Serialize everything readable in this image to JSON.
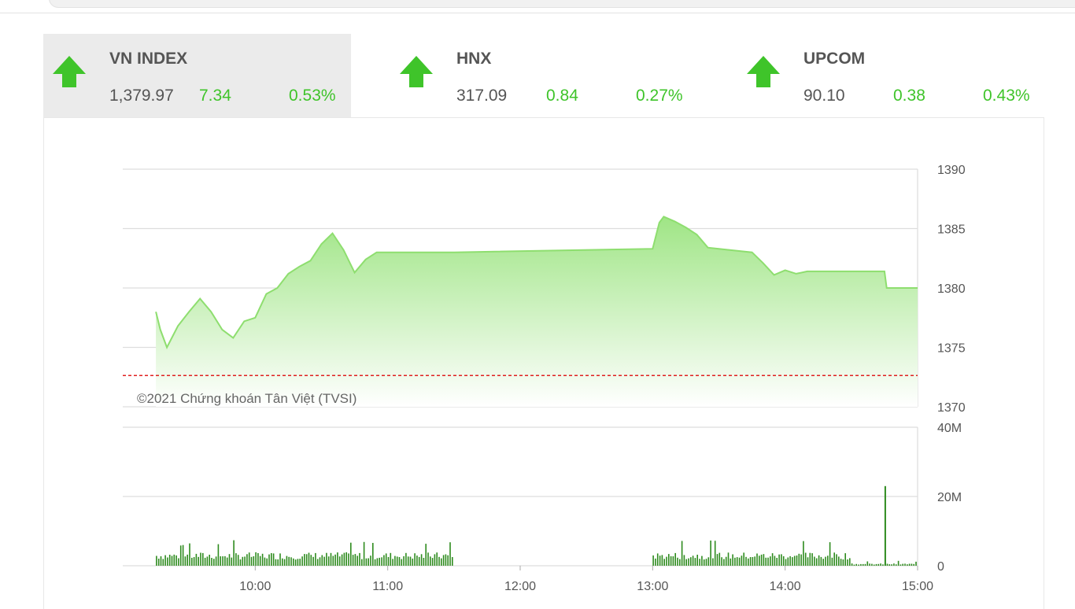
{
  "indices": [
    {
      "name": "VN INDEX",
      "value": "1,379.97",
      "change": "7.34",
      "percent": "0.53%",
      "direction": "up",
      "active": true
    },
    {
      "name": "HNX",
      "value": "317.09",
      "change": "0.84",
      "percent": "0.27%",
      "direction": "up",
      "active": false
    },
    {
      "name": "UPCOM",
      "value": "90.10",
      "change": "0.38",
      "percent": "0.43%",
      "direction": "up",
      "active": false
    }
  ],
  "colors": {
    "up": "#3fc42a",
    "line": "#8ede6f",
    "fill_top": "#9fe585",
    "fill_bottom": "#ffffff",
    "reference_line": "#e02020",
    "volume_bar": "#2e8b1e",
    "grid": "#dddddd",
    "text": "#555555"
  },
  "chart_data": [
    {
      "type": "area",
      "watermark": "©2021 Chứng khoán Tân Việt (TVSI)",
      "y_ticks": [
        "1390",
        "1385",
        "1380",
        "1375",
        "1370"
      ],
      "ylim": [
        1370,
        1390
      ],
      "reference_value": 1372.63,
      "reference_style": "dashed red line",
      "grid": true,
      "series": [
        {
          "x": [
            "09:15",
            "09:17",
            "09:20",
            "09:25",
            "09:30",
            "09:35",
            "09:40",
            "09:45",
            "09:50",
            "09:55",
            "10:00",
            "10:05",
            "10:10",
            "10:15",
            "10:20",
            "10:25",
            "10:30",
            "10:35",
            "10:40",
            "10:45",
            "10:50",
            "10:55",
            "11:00",
            "11:05",
            "11:10",
            "11:15",
            "11:20",
            "11:25",
            "11:30",
            "13:00",
            "13:03",
            "13:05",
            "13:10",
            "13:15",
            "13:20",
            "13:25",
            "13:30",
            "13:35",
            "13:40",
            "13:45",
            "13:50",
            "13:55",
            "14:00",
            "14:05",
            "14:10",
            "14:15",
            "14:20",
            "14:25",
            "14:30",
            "14:45",
            "14:46",
            "15:00"
          ],
          "y": [
            1378.0,
            1376.5,
            1375.0,
            1376.8,
            1378.0,
            1379.1,
            1378.0,
            1376.5,
            1375.8,
            1377.2,
            1377.5,
            1379.5,
            1380.0,
            1381.2,
            1381.8,
            1382.3,
            1383.7,
            1384.6,
            1383.2,
            1381.3,
            1382.4,
            1383.0,
            1383.0,
            1383.0,
            1383.0,
            1383.0,
            1383.0,
            1383.0,
            1383.0,
            1383.3,
            1385.5,
            1386.0,
            1385.6,
            1385.1,
            1384.5,
            1383.4,
            1383.3,
            1383.2,
            1383.1,
            1383.0,
            1382.1,
            1381.1,
            1381.5,
            1381.2,
            1381.4,
            1381.4,
            1381.4,
            1381.4,
            1381.4,
            1381.4,
            1380.0,
            1380.0
          ]
        }
      ]
    },
    {
      "type": "bar",
      "y_ticks": [
        "40M",
        "20M",
        "0"
      ],
      "ylim": [
        0,
        40
      ],
      "x_ticks": [
        "10:00",
        "11:00",
        "12:00",
        "13:00",
        "14:00",
        "15:00"
      ],
      "grid": true,
      "sessions": [
        {
          "start": "09:15",
          "end": "11:30",
          "interval_minutes": 1,
          "typical_volume_M": 3,
          "max_volume_M": 7.5
        },
        {
          "start": "13:00",
          "end": "14:30",
          "interval_minutes": 1,
          "typical_volume_M": 3,
          "max_volume_M": 7.5
        },
        {
          "start": "14:30",
          "end": "15:00",
          "interval_minutes": 1,
          "typical_volume_M": 0.5,
          "max_volume_M": 1.5
        }
      ],
      "spike": {
        "x": "14:45",
        "value_M": 23
      }
    }
  ]
}
